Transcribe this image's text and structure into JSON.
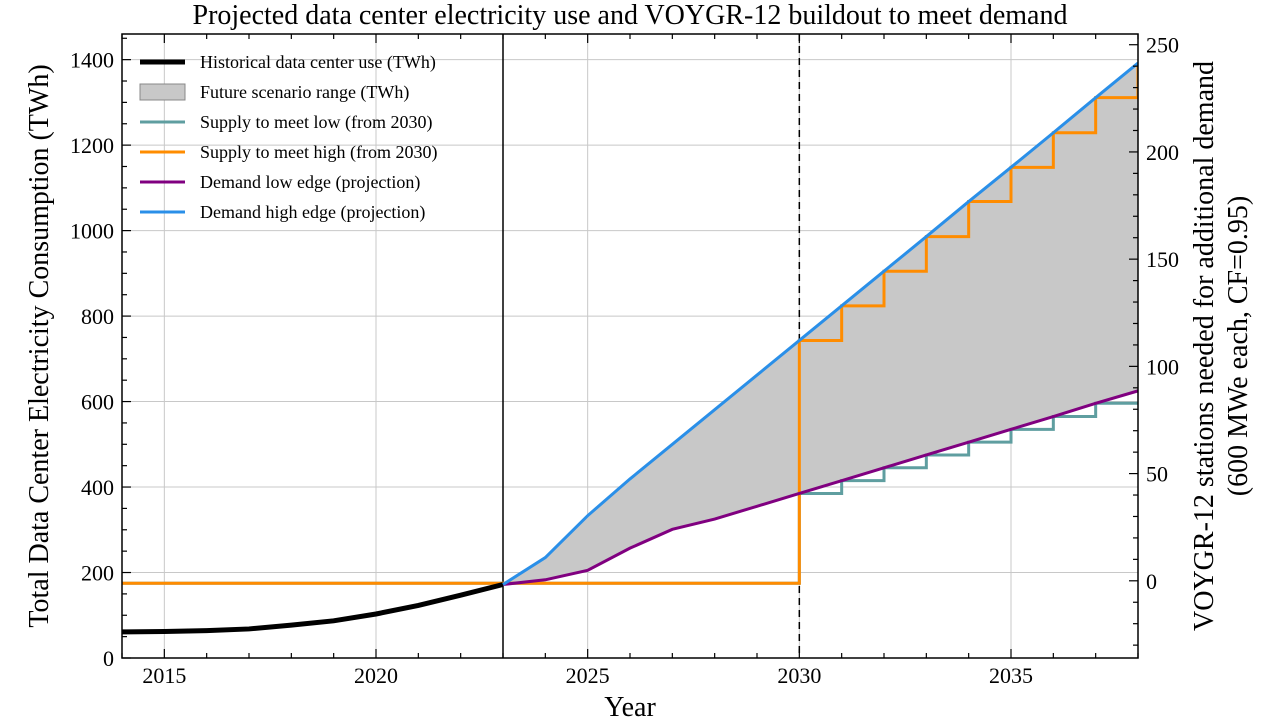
{
  "chart_data": {
    "type": "line",
    "title": "Projected data center electricity use and VOYGR-12 buildout to meet demand",
    "xlabel": "Year",
    "ylabel": "Total Data Center Electricity Consumption (TWh)",
    "y2label_line1": "VOYGR-12 stations needed for additional demand",
    "y2label_line2": "(600 MWe each, CF=0.95)",
    "xlim": [
      2014,
      2038
    ],
    "ylim": [
      0,
      1460
    ],
    "y2lim": [
      -36,
      255
    ],
    "xticks": [
      2015,
      2020,
      2025,
      2030,
      2035
    ],
    "yticks": [
      0,
      200,
      400,
      600,
      800,
      1000,
      1200,
      1400
    ],
    "y2ticks": [
      0,
      50,
      100,
      150,
      200,
      250
    ],
    "grid": true,
    "legend_position": "top-left",
    "vlines": [
      {
        "x": 2023,
        "style": "solid"
      },
      {
        "x": 2030,
        "style": "dashed"
      }
    ],
    "legend": [
      {
        "label": "Historical data center use (TWh)",
        "kind": "line",
        "color": "#000000"
      },
      {
        "label": "Future scenario range (TWh)",
        "kind": "patch",
        "color": "#c8c8c8"
      },
      {
        "label": "Supply to meet low (from 2030)",
        "kind": "line",
        "color": "#5f9ea0"
      },
      {
        "label": "Supply to meet high (from 2030)",
        "kind": "line",
        "color": "#ff8c00"
      },
      {
        "label": "Demand low edge (projection)",
        "kind": "line",
        "color": "#800080"
      },
      {
        "label": "Demand high edge (projection)",
        "kind": "line",
        "color": "#2a8fe8"
      }
    ],
    "series": [
      {
        "name": "Historical data center use (TWh)",
        "color": "#000000",
        "x": [
          2014,
          2015,
          2016,
          2017,
          2018,
          2019,
          2020,
          2021,
          2022,
          2023
        ],
        "y": [
          61,
          62,
          64,
          68,
          77,
          87,
          103,
          123,
          147,
          172
        ]
      },
      {
        "name": "Demand low edge (projection)",
        "color": "#800080",
        "x": [
          2023,
          2024,
          2025,
          2026,
          2027,
          2028,
          2029,
          2030,
          2031,
          2032,
          2033,
          2034,
          2035,
          2036,
          2037,
          2038
        ],
        "y": [
          172,
          183,
          205,
          257,
          301,
          325,
          355,
          385,
          415,
          445,
          475,
          505,
          535,
          565,
          596,
          625
        ]
      },
      {
        "name": "Demand high edge (projection)",
        "color": "#2a8fe8",
        "x": [
          2023,
          2024,
          2025,
          2026,
          2027,
          2028,
          2029,
          2030,
          2031,
          2032,
          2033,
          2034,
          2035,
          2036,
          2037,
          2038
        ],
        "y": [
          172,
          235,
          333,
          419,
          500,
          581,
          662,
          743,
          824,
          905,
          986,
          1068,
          1148,
          1229,
          1311,
          1392
        ]
      },
      {
        "name": "Supply to meet low (from 2030)",
        "color": "#5f9ea0",
        "step": "post",
        "x": [
          2014,
          2030,
          2031,
          2032,
          2033,
          2034,
          2035,
          2036,
          2037,
          2038
        ],
        "y": [
          175,
          385,
          415,
          445,
          475,
          505,
          535,
          565,
          596,
          596
        ]
      },
      {
        "name": "Supply to meet high (from 2030)",
        "color": "#ff8c00",
        "step": "post",
        "x": [
          2014,
          2030,
          2031,
          2032,
          2033,
          2034,
          2035,
          2036,
          2037,
          2038
        ],
        "y": [
          175,
          743,
          824,
          905,
          986,
          1068,
          1148,
          1229,
          1311,
          1392
        ]
      }
    ]
  }
}
